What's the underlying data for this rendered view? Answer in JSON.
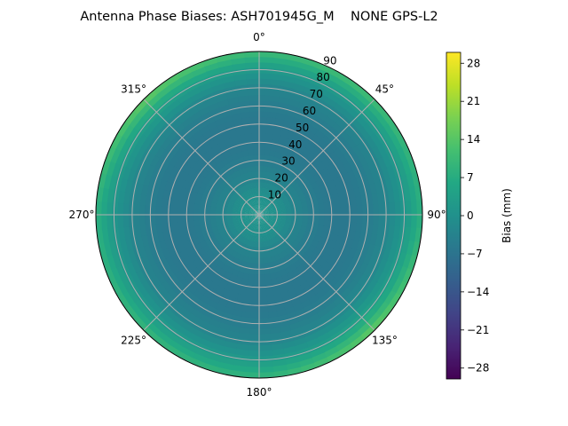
{
  "chart_data": {
    "type": "heatmap",
    "projection": "polar",
    "title": "Antenna Phase Biases: ASH701945G_M    NONE GPS-L2",
    "theta_direction": "clockwise",
    "theta_zero": "top",
    "theta_tick_labels": [
      "0°",
      "45°",
      "90°",
      "135°",
      "180°",
      "225°",
      "270°",
      "315°"
    ],
    "theta_ticks": [
      0,
      45,
      90,
      135,
      180,
      225,
      270,
      315
    ],
    "r_ticks": [
      10,
      20,
      30,
      40,
      50,
      60,
      70,
      80,
      90
    ],
    "r_tick_labels": [
      "10",
      "20",
      "30",
      "40",
      "50",
      "60",
      "70",
      "80",
      "90"
    ],
    "rlim": [
      0,
      90
    ],
    "grid": true,
    "azimuths": [
      0,
      45,
      90,
      135,
      180,
      225,
      270,
      315
    ],
    "zeniths": [
      0,
      10,
      20,
      30,
      40,
      50,
      60,
      70,
      80,
      90
    ],
    "values": [
      [
        1,
        0,
        -3,
        -5,
        -6,
        -6,
        -5,
        -3,
        2,
        11
      ],
      [
        1,
        0,
        -3,
        -5,
        -6,
        -6,
        -5,
        -3,
        2,
        12
      ],
      [
        1,
        0,
        -3,
        -5,
        -6,
        -6,
        -5,
        -3,
        1,
        8
      ],
      [
        1,
        0,
        -3,
        -5,
        -6,
        -6,
        -5,
        -2,
        4,
        16
      ],
      [
        1,
        0,
        -3,
        -5,
        -6,
        -6,
        -5,
        -3,
        2,
        9
      ],
      [
        1,
        0,
        -3,
        -5,
        -6,
        -6,
        -5,
        -3,
        2,
        10
      ],
      [
        1,
        0,
        -3,
        -5,
        -6,
        -6,
        -5,
        -3,
        1,
        8
      ],
      [
        1,
        0,
        -3,
        -5,
        -6,
        -6,
        -5,
        -2,
        4,
        16
      ]
    ],
    "colormap": "viridis",
    "colorbar": {
      "label": "Bias (mm)",
      "range": [
        -30,
        30
      ],
      "ticks": [
        28,
        21,
        14,
        7,
        0,
        -7,
        -14,
        -21,
        -28
      ],
      "tick_labels": [
        "28",
        "21",
        "14",
        "7",
        "0",
        "−7",
        "−14",
        "−21",
        "−28"
      ]
    }
  }
}
